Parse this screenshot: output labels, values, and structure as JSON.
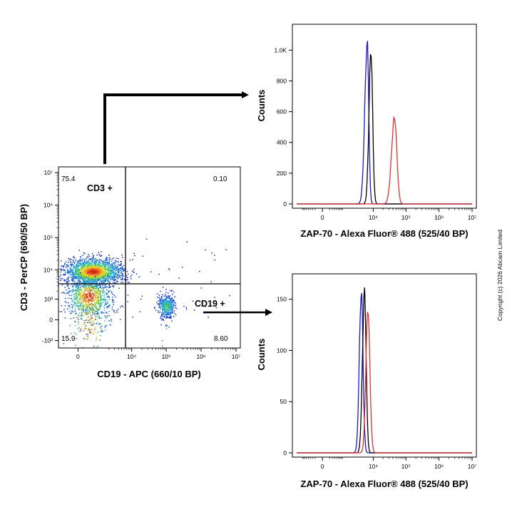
{
  "copyright": "Copyright (c) 2026 Abcam Limited",
  "chart_data": [
    {
      "type": "scatter",
      "id": "dotplot",
      "xlabel": "CD19 - APC (660/10 BP)",
      "ylabel": "CD3 - PerCP (690/50 BP)",
      "xscale": "biexponential",
      "yscale": "biexponential",
      "x_tick_labels": [
        "0",
        "10⁴",
        "10⁵",
        "10⁶",
        "10⁷"
      ],
      "x_tick_values": [
        0,
        10000,
        100000,
        1000000,
        10000000
      ],
      "y_tick_labels": [
        "-10³",
        "0",
        "10³",
        "10⁴",
        "10⁵",
        "10⁶",
        "10⁷"
      ],
      "y_tick_values": [
        -1000,
        0,
        1000,
        10000,
        100000,
        1000000,
        10000000
      ],
      "quadrant_gate": {
        "x": 4000,
        "y": 2500
      },
      "quadrant_percentages": {
        "upper_left": "75.4",
        "upper_right": "0.10",
        "lower_left": "15.9",
        "lower_right": "8.60"
      },
      "gate_labels": {
        "cd3": "CD3 +",
        "cd19": "CD19 +"
      },
      "populations": [
        {
          "name": "",
          "x_center": 500,
          "y_center": 9000,
          "count": 1900
        },
        {
          "name": "",
          "x_center": 300,
          "y_center": 1300,
          "count": 950
        },
        {
          "name": "",
          "x_center": 100000,
          "y_center": 500,
          "count": 420
        }
      ],
      "grid": false
    },
    {
      "type": "line",
      "id": "hist_cd3",
      "xlabel": "ZAP-70 - Alexa Fluor® 488  (525/40 BP)",
      "ylabel": "Counts",
      "x_tick_labels": [
        "0",
        "10⁴",
        "10⁵",
        "10⁶",
        "10⁷"
      ],
      "x_tick_values": [
        0,
        10000,
        100000,
        1000000,
        10000000
      ],
      "y_tick_labels": [
        "0",
        "200",
        "400",
        "600",
        "800",
        "1.0K"
      ],
      "y_tick_values": [
        0,
        200,
        400,
        600,
        800,
        1000
      ],
      "ylim": [
        0,
        1150
      ],
      "series": [
        {
          "color": "#1818d0",
          "peak_x": 6500,
          "peak_y": 1050
        },
        {
          "color": "#000000",
          "peak_x": 8500,
          "peak_y": 1000
        },
        {
          "color": "#e03030",
          "peak_x": 45000,
          "peak_y": 560
        }
      ]
    },
    {
      "type": "line",
      "id": "hist_cd19",
      "xlabel": "ZAP-70 - Alexa Fluor® 488  (525/40 BP)",
      "ylabel": "Counts",
      "x_tick_labels": [
        "0",
        "10⁴",
        "10⁵",
        "10⁶",
        "10⁷"
      ],
      "x_tick_values": [
        0,
        10000,
        100000,
        1000000,
        10000000
      ],
      "y_tick_labels": [
        "0",
        "50",
        "100",
        "150"
      ],
      "y_tick_values": [
        0,
        50,
        100,
        150
      ],
      "ylim": [
        0,
        172
      ],
      "series": [
        {
          "color": "#1818d0",
          "peak_x": 4200,
          "peak_y": 158
        },
        {
          "color": "#000000",
          "peak_x": 5300,
          "peak_y": 158
        },
        {
          "color": "#e03030",
          "peak_x": 6800,
          "peak_y": 141
        }
      ]
    }
  ]
}
